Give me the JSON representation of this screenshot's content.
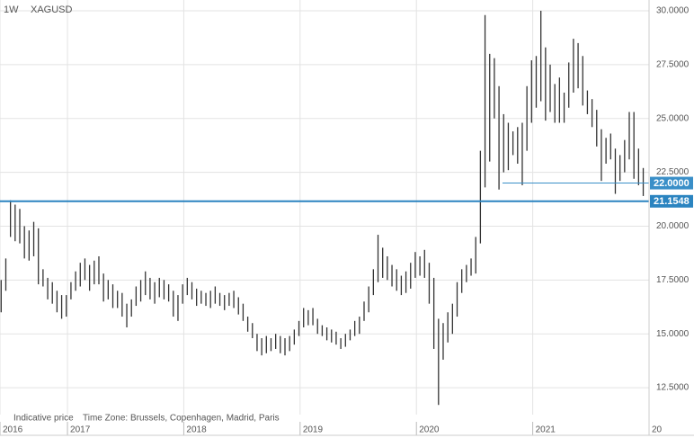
{
  "chart_data": {
    "type": "range",
    "interval": "1W",
    "symbol": "XAGUSD",
    "footnote": "Indicative price",
    "timezone": "Time Zone: Brussels, Copenhagen, Madrid, Paris",
    "color": "#333333",
    "grid": true,
    "xlim": [
      2016.42,
      2022.0
    ],
    "ylim": [
      11.25,
      30.5
    ],
    "xticks": [
      {
        "value": 2016.42,
        "label": "2016"
      },
      2017,
      2018,
      2019,
      2020,
      2021,
      {
        "value": 2022,
        "label": "20"
      }
    ],
    "yticks": [
      {
        "value": 12.5,
        "label": "12.5000"
      },
      {
        "value": 15,
        "label": "15.0000"
      },
      {
        "value": 17.5,
        "label": "17.5000"
      },
      {
        "value": 20,
        "label": "20.0000"
      },
      {
        "value": 22.5,
        "label": "22.5000"
      },
      {
        "value": 25,
        "label": "25.0000"
      },
      {
        "value": 27.5,
        "label": "27.5000"
      },
      {
        "value": 30,
        "label": "30.0000"
      }
    ],
    "x": [
      2016.43,
      2016.47,
      2016.51,
      2016.55,
      2016.59,
      2016.63,
      2016.67,
      2016.71,
      2016.75,
      2016.79,
      2016.83,
      2016.87,
      2016.91,
      2016.95,
      2016.99,
      2017.03,
      2017.07,
      2017.11,
      2017.15,
      2017.19,
      2017.23,
      2017.27,
      2017.31,
      2017.35,
      2017.39,
      2017.43,
      2017.47,
      2017.51,
      2017.55,
      2017.59,
      2017.63,
      2017.67,
      2017.71,
      2017.75,
      2017.79,
      2017.83,
      2017.87,
      2017.91,
      2017.95,
      2017.99,
      2018.03,
      2018.07,
      2018.11,
      2018.15,
      2018.19,
      2018.23,
      2018.27,
      2018.31,
      2018.35,
      2018.39,
      2018.43,
      2018.47,
      2018.51,
      2018.55,
      2018.59,
      2018.63,
      2018.67,
      2018.71,
      2018.75,
      2018.79,
      2018.83,
      2018.87,
      2018.91,
      2018.95,
      2018.99,
      2019.03,
      2019.07,
      2019.11,
      2019.15,
      2019.19,
      2019.23,
      2019.27,
      2019.31,
      2019.35,
      2019.39,
      2019.43,
      2019.47,
      2019.51,
      2019.55,
      2019.59,
      2019.63,
      2019.67,
      2019.71,
      2019.75,
      2019.79,
      2019.83,
      2019.87,
      2019.91,
      2019.95,
      2019.99,
      2020.03,
      2020.07,
      2020.11,
      2020.15,
      2020.19,
      2020.23,
      2020.27,
      2020.31,
      2020.35,
      2020.39,
      2020.43,
      2020.47,
      2020.51,
      2020.55,
      2020.59,
      2020.63,
      2020.67,
      2020.71,
      2020.75,
      2020.79,
      2020.83,
      2020.87,
      2020.91,
      2020.95,
      2020.99,
      2021.03,
      2021.07,
      2021.11,
      2021.15,
      2021.19,
      2021.23,
      2021.27,
      2021.31,
      2021.35,
      2021.39,
      2021.43,
      2021.47,
      2021.51,
      2021.55,
      2021.59,
      2021.63,
      2021.67,
      2021.71,
      2021.75,
      2021.79,
      2021.83,
      2021.87,
      2021.91,
      2021.95
    ],
    "high": [
      17.5,
      18.5,
      21.2,
      21.0,
      20.8,
      20.0,
      19.8,
      20.2,
      19.9,
      18.0,
      17.6,
      17.4,
      17.0,
      16.8,
      16.8,
      17.4,
      17.9,
      18.3,
      18.5,
      18.2,
      18.4,
      18.6,
      17.8,
      17.5,
      17.3,
      17.0,
      16.9,
      16.4,
      16.6,
      17.2,
      17.5,
      17.9,
      17.6,
      17.4,
      17.6,
      17.5,
      17.3,
      17.0,
      16.8,
      17.3,
      17.6,
      17.4,
      17.1,
      17.0,
      16.9,
      17.0,
      17.2,
      16.9,
      16.8,
      16.9,
      17.0,
      16.7,
      16.4,
      15.8,
      15.5,
      15.0,
      14.8,
      14.9,
      14.8,
      15.0,
      14.9,
      14.8,
      14.9,
      15.2,
      15.6,
      16.2,
      16.1,
      16.2,
      15.7,
      15.4,
      15.3,
      15.2,
      15.1,
      14.8,
      15.0,
      15.2,
      15.6,
      15.8,
      16.5,
      17.2,
      18.0,
      19.6,
      19.0,
      18.6,
      18.2,
      18.0,
      17.7,
      17.9,
      18.3,
      18.8,
      18.6,
      18.9,
      18.3,
      17.6,
      15.7,
      15.5,
      16.0,
      16.4,
      17.4,
      18.0,
      18.2,
      18.5,
      19.5,
      23.5,
      29.8,
      28.0,
      27.8,
      26.5,
      25.2,
      24.8,
      24.4,
      24.6,
      24.8,
      26.5,
      27.7,
      27.9,
      30.0,
      28.3,
      27.5,
      26.6,
      26.9,
      26.2,
      27.6,
      28.7,
      28.5,
      27.9,
      26.3,
      25.9,
      25.4,
      24.5,
      24.1,
      24.3,
      23.6,
      23.3,
      24.0,
      25.3,
      25.3,
      23.6,
      22.7
    ],
    "low": [
      16.0,
      17.0,
      19.5,
      19.3,
      19.2,
      18.5,
      18.4,
      18.6,
      17.3,
      17.2,
      16.6,
      16.4,
      16.0,
      15.7,
      15.8,
      16.6,
      17.0,
      17.2,
      17.5,
      17.0,
      17.3,
      17.3,
      16.5,
      16.6,
      16.2,
      16.2,
      15.8,
      15.3,
      15.8,
      16.3,
      16.5,
      16.8,
      16.6,
      16.4,
      16.7,
      16.6,
      16.5,
      15.8,
      15.6,
      16.4,
      16.8,
      16.6,
      16.3,
      16.4,
      16.3,
      16.2,
      16.4,
      16.3,
      16.1,
      16.3,
      16.2,
      15.9,
      15.6,
      15.1,
      14.8,
      14.2,
      14.0,
      14.1,
      14.2,
      14.3,
      14.1,
      14.0,
      14.2,
      14.5,
      14.9,
      15.3,
      15.4,
      15.4,
      15.0,
      14.9,
      14.7,
      14.6,
      14.5,
      14.3,
      14.4,
      14.7,
      14.9,
      15.0,
      15.6,
      16.0,
      16.8,
      17.4,
      17.6,
      17.5,
      17.2,
      17.0,
      16.8,
      16.9,
      17.1,
      17.6,
      17.7,
      17.6,
      16.4,
      14.3,
      11.7,
      13.8,
      14.6,
      15.0,
      15.8,
      16.9,
      17.4,
      17.7,
      17.8,
      19.2,
      21.8,
      23.0,
      25.0,
      21.7,
      22.5,
      22.6,
      23.3,
      22.9,
      21.9,
      23.5,
      24.8,
      25.5,
      25.8,
      24.9,
      25.3,
      24.8,
      24.8,
      24.8,
      25.5,
      26.2,
      26.4,
      25.6,
      25.2,
      24.6,
      23.7,
      22.1,
      22.9,
      23.1,
      21.5,
      22.1,
      22.5,
      23.1,
      22.2,
      21.9,
      21.4
    ],
    "levels": [
      {
        "value": 22.0,
        "label": "22.0000",
        "from": 2020.74,
        "color": "#3a8fc8",
        "width": 1
      },
      {
        "value": 21.1548,
        "label": "21.1548",
        "from": 2016.42,
        "color": "#2b84c0",
        "width": 2
      }
    ]
  }
}
